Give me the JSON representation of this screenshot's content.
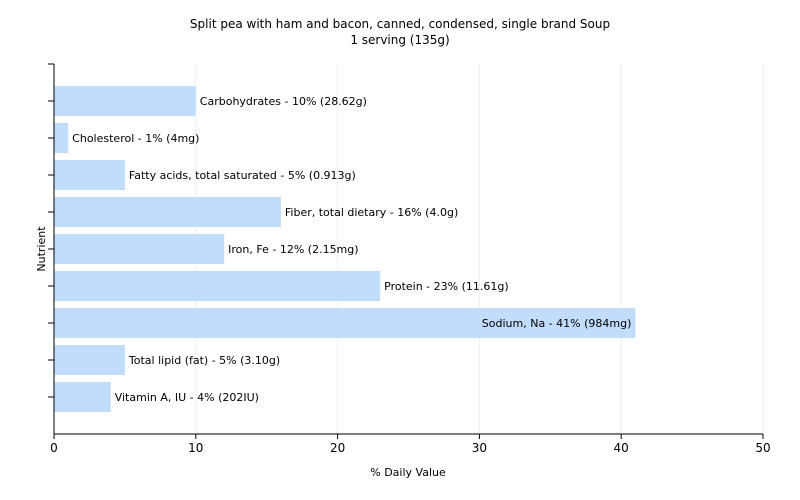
{
  "chart_data": {
    "type": "bar",
    "orientation": "horizontal",
    "title": "Split pea with ham and bacon, canned, condensed, single brand Soup",
    "subtitle": "1 serving (135g)",
    "xlabel": "% Daily Value",
    "ylabel": "Nutrient",
    "xlim": [
      0,
      50
    ],
    "xticks": [
      "0",
      "10",
      "20",
      "30",
      "40",
      "50"
    ],
    "grid": true,
    "bar_color": "#c2dcfc",
    "categories": [
      "Carbohydrates",
      "Cholesterol",
      "Fatty acids, total saturated",
      "Fiber, total dietary",
      "Iron, Fe",
      "Protein",
      "Sodium, Na",
      "Total lipid (fat)",
      "Vitamin A, IU"
    ],
    "values": [
      10,
      1,
      5,
      16,
      12,
      23,
      41,
      5,
      4
    ],
    "labels": [
      "Carbohydrates - 10% (28.62g)",
      "Cholesterol - 1% (4mg)",
      "Fatty acids, total saturated - 5% (0.913g)",
      "Fiber, total dietary - 16% (4.0g)",
      "Iron, Fe - 12% (2.15mg)",
      "Protein - 23% (11.61g)",
      "Sodium, Na - 41% (984mg)",
      "Total lipid (fat) - 5% (3.10g)",
      "Vitamin A, IU - 4% (202IU)"
    ]
  }
}
